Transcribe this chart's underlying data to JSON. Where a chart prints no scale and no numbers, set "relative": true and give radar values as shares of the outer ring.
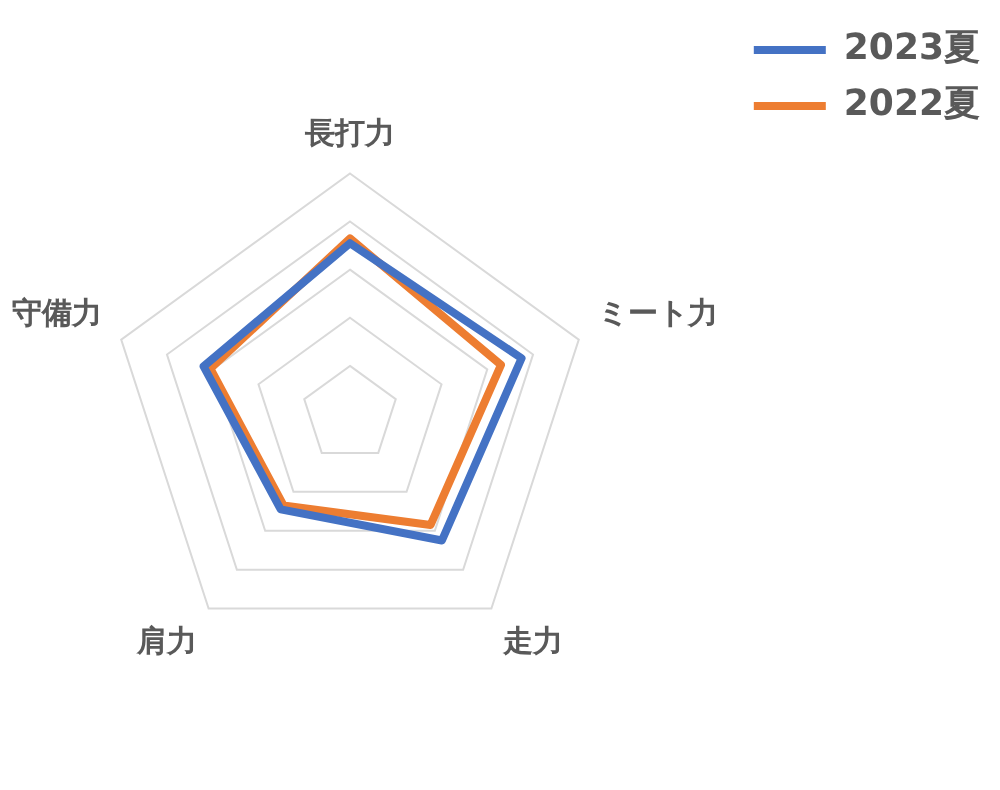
{
  "chart_data": {
    "type": "radar",
    "relative": true,
    "categories": [
      "長打力",
      "ミート力",
      "走力",
      "肩力",
      "守備力"
    ],
    "series": [
      {
        "name": "2023夏",
        "color": "#4472c4",
        "values": [
          0.71,
          0.75,
          0.65,
          0.49,
          0.64
        ]
      },
      {
        "name": "2022夏",
        "color": "#ed7d31",
        "values": [
          0.73,
          0.66,
          0.57,
          0.47,
          0.61
        ]
      }
    ],
    "grid": true,
    "legend": "top right",
    "marker": "none",
    "line_style": "solid"
  }
}
